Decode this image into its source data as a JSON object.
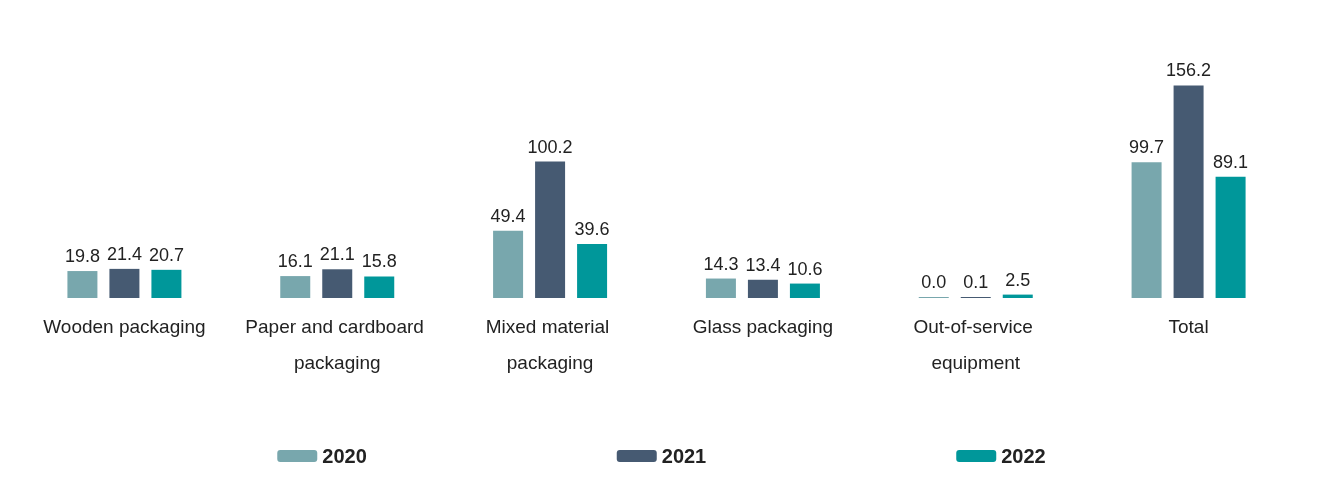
{
  "chart_data": {
    "type": "bar",
    "categories": [
      "Wooden packaging",
      "Paper and cardboard packaging",
      "Mixed material packaging",
      "Glass packaging",
      "Out-of-service equipment",
      "Total"
    ],
    "series": [
      {
        "name": "2020",
        "color": "#78a7ad",
        "values": [
          19.8,
          16.1,
          49.4,
          14.3,
          0.0,
          99.7
        ],
        "value_labels": [
          "19.8",
          "16.1",
          "49.4",
          "14.3",
          "0.0",
          "99.7"
        ]
      },
      {
        "name": "2021",
        "color": "#465a72",
        "values": [
          21.4,
          21.1,
          100.2,
          13.4,
          0.1,
          156.2
        ],
        "value_labels": [
          "21.4",
          "21.1",
          "100.2",
          "13.4",
          "0.1",
          "156.2"
        ]
      },
      {
        "name": "2022",
        "color": "#00979a",
        "values": [
          20.7,
          15.8,
          39.6,
          10.6,
          2.5,
          89.1
        ],
        "value_labels": [
          "20.7",
          "15.8",
          "39.6",
          "10.6",
          "2.5",
          "89.1"
        ]
      }
    ],
    "legend": "bottom"
  }
}
